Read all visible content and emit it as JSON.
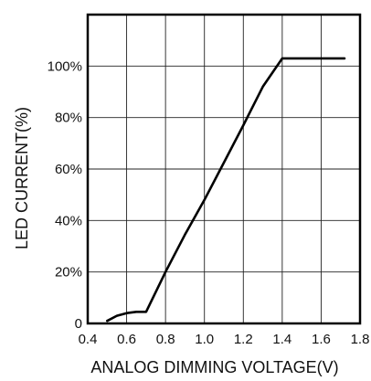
{
  "chart_data": {
    "type": "line",
    "title": "",
    "xlabel": "ANALOG DIMMING VOLTAGE(V)",
    "ylabel": "LED CURRENT(%)",
    "xlim": [
      0.4,
      1.8
    ],
    "ylim": [
      0,
      120
    ],
    "xticks": [
      0.4,
      0.6,
      0.8,
      1.0,
      1.2,
      1.4,
      1.6,
      1.8
    ],
    "xtick_labels": [
      "0.4",
      "0.6",
      "0.8",
      "1.0",
      "1.2",
      "1.4",
      "1.6",
      "1.8"
    ],
    "yticks": [
      0,
      20,
      40,
      60,
      80,
      100
    ],
    "ytick_labels": [
      "0",
      "20%",
      "40%",
      "60%",
      "80%",
      "100%"
    ],
    "grid": true,
    "legend": false,
    "series": [
      {
        "x": [
          0.5,
          0.55,
          0.6,
          0.65,
          0.7,
          0.8,
          0.9,
          1.0,
          1.1,
          1.2,
          1.3,
          1.4,
          1.72
        ],
        "y": [
          1.0,
          3.0,
          4.0,
          4.5,
          4.5,
          20.0,
          34.5,
          48.0,
          62.5,
          77.0,
          92.0,
          103.0,
          103.0
        ]
      }
    ]
  }
}
